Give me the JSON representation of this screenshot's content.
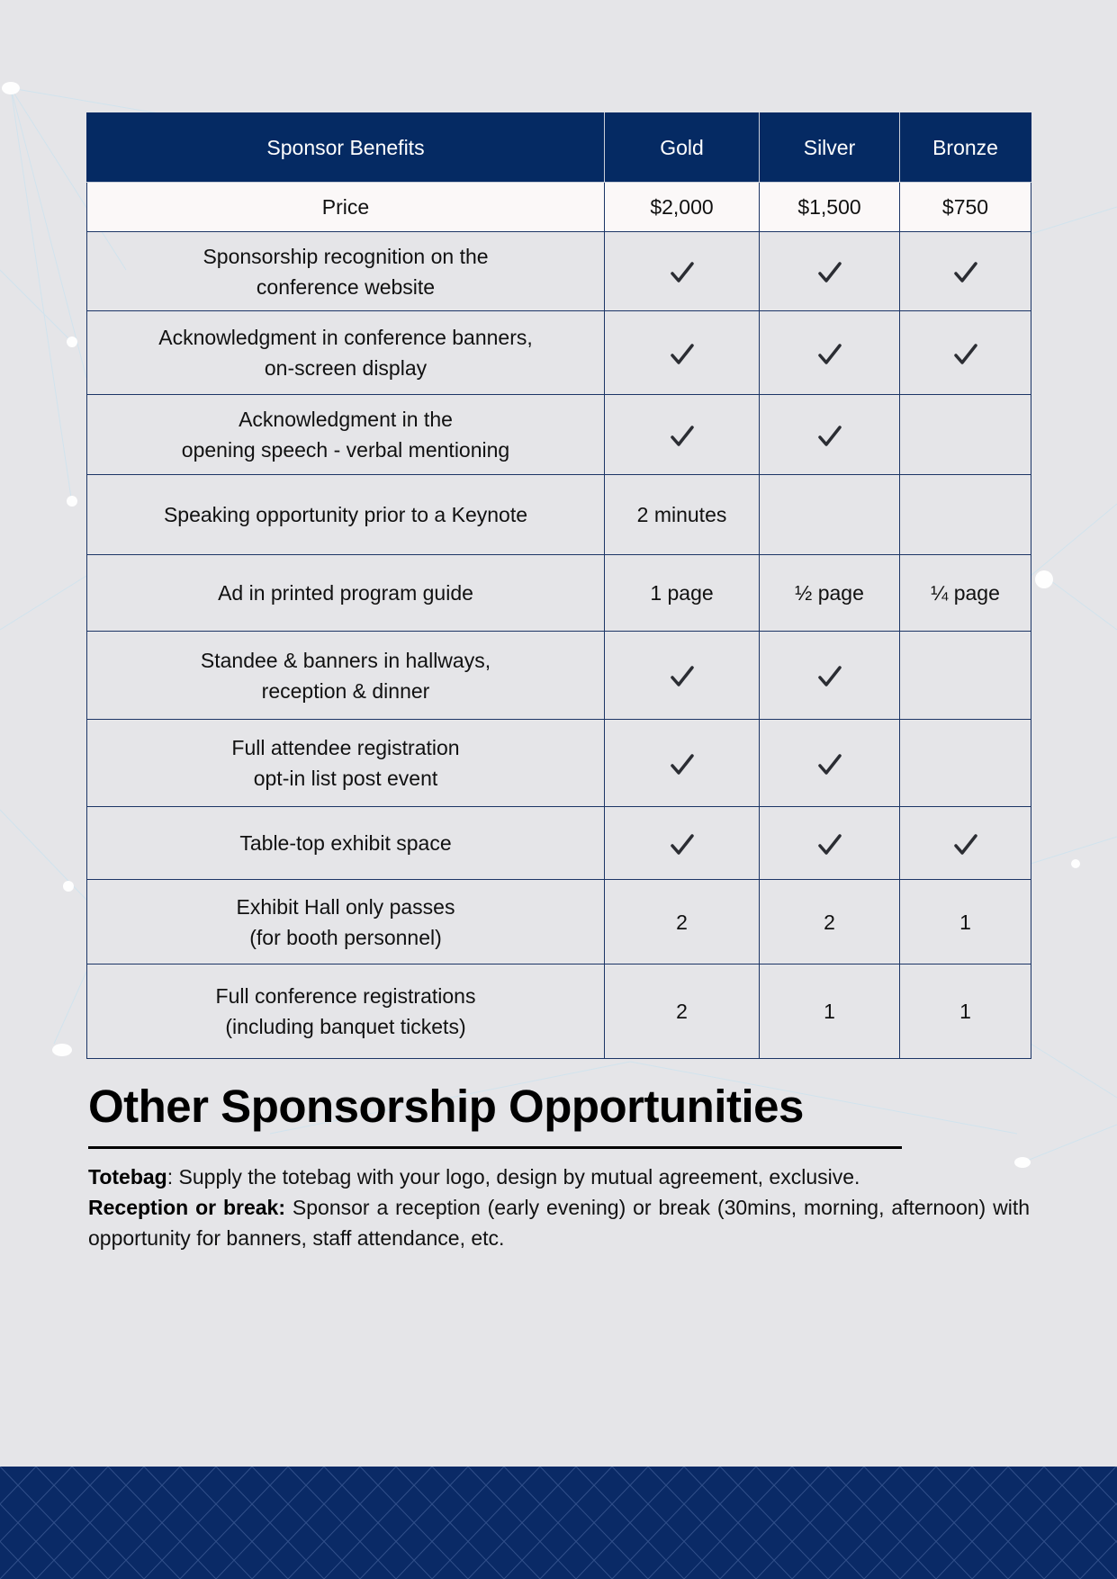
{
  "table": {
    "headers": [
      "Sponsor Benefits",
      "Gold",
      "Silver",
      "Bronze"
    ],
    "price": {
      "label": "Price",
      "gold": "$2,000",
      "silver": "$1,500",
      "bronze": "$750"
    },
    "rows": [
      {
        "benefit_lines": [
          "Sponsorship recognition on the",
          "conference website"
        ],
        "gold": "check",
        "silver": "check",
        "bronze": "check"
      },
      {
        "benefit_lines": [
          "Acknowledgment in conference banners,",
          "on-screen display"
        ],
        "gold": "check",
        "silver": "check",
        "bronze": "check"
      },
      {
        "benefit_lines": [
          "Acknowledgment in the",
          "opening speech - verbal mentioning"
        ],
        "gold": "check",
        "silver": "check",
        "bronze": ""
      },
      {
        "benefit_lines": [
          "Speaking opportunity prior to a Keynote"
        ],
        "gold": "2 minutes",
        "silver": "",
        "bronze": ""
      },
      {
        "benefit_lines": [
          "Ad in printed program guide"
        ],
        "gold": "1 page",
        "silver": "½ page",
        "bronze": "¼ page"
      },
      {
        "benefit_lines": [
          "Standee & banners in hallways,",
          "reception & dinner"
        ],
        "gold": "check",
        "silver": "check",
        "bronze": ""
      },
      {
        "benefit_lines": [
          "Full attendee registration",
          "opt-in list post event"
        ],
        "gold": "check",
        "silver": "check",
        "bronze": ""
      },
      {
        "benefit_lines": [
          "Table-top exhibit space"
        ],
        "gold": "check",
        "silver": "check",
        "bronze": "check"
      },
      {
        "benefit_lines": [
          "Exhibit Hall only passes",
          "(for booth personnel)"
        ],
        "gold": "2",
        "silver": "2",
        "bronze": "1"
      },
      {
        "benefit_lines": [
          "Full conference registrations",
          "(including banquet tickets)"
        ],
        "gold": "2",
        "silver": "1",
        "bronze": "1"
      }
    ]
  },
  "other": {
    "heading": "Other Sponsorship Opportunities",
    "totebag_label": "Totebag",
    "totebag_text": ": Supply the totebag with your logo, design by mutual agreement, exclusive.",
    "reception_label": "Reception or break:",
    "reception_text": " Sponsor a reception (early evening) or break (30mins, morning, afternoon) with opportunity for banners, staff attendance, etc."
  },
  "colors": {
    "header_bg": "#052a63",
    "grid_line": "#1c3566",
    "page_bg": "#e5e5e8",
    "footer_bg": "#0a2a66",
    "check": "#2b2d33"
  }
}
